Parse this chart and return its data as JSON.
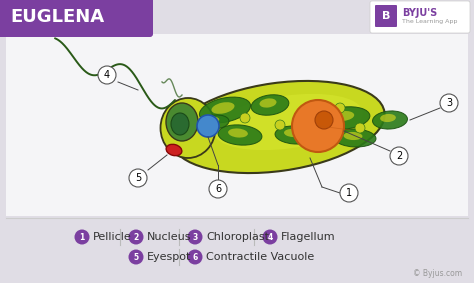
{
  "title": "EUGLENA",
  "title_bg_color": "#7b3fa0",
  "title_text_color": "#ffffff",
  "bg_color": "#e0dde5",
  "diagram_bg": "#f5f5f7",
  "legend_color": "#7b3fa0",
  "byju_logo_text": "BYJU'S",
  "byjus_credit": "© Byjus.com",
  "cell_body_color": "#c8d820",
  "cell_body_color2": "#d8e830",
  "cell_outline_color": "#3a3a1a",
  "chloroplast_dark": "#2a7a18",
  "chloroplast_mid": "#3a9a28",
  "nucleus_color": "#e87828",
  "nucleus_outline": "#c05810",
  "eyespot_color": "#cc2020",
  "flagellum_color": "#2a5a18",
  "vacuole_color": "#4488cc",
  "vacuole_outline": "#2255aa",
  "reservoir_dark": "#2a6a30",
  "label_bg": "#ffffff",
  "label_outline": "#555555",
  "line_color": "#444444",
  "legend_sep_color": "#bbbbbb",
  "logo_bg": "#ffffff",
  "logo_border": "#cccccc"
}
